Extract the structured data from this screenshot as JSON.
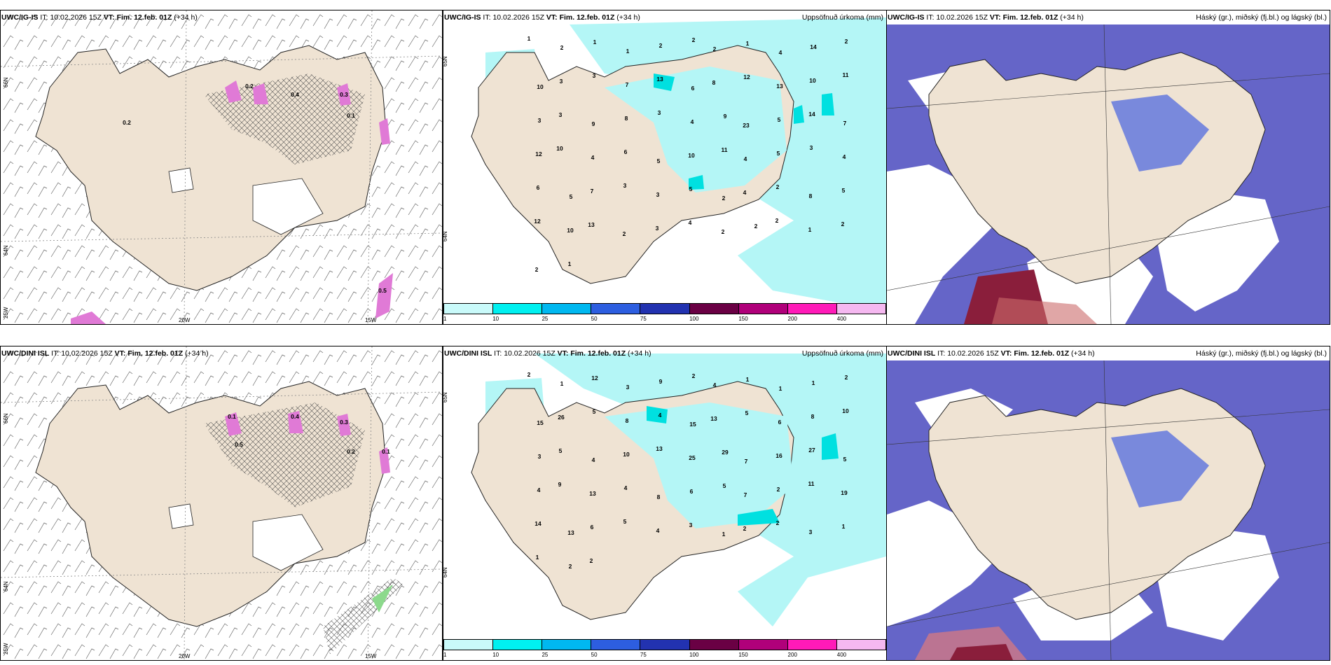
{
  "colors": {
    "land": "#efe3d3",
    "precip_light": "#b4f6f6",
    "cloud_high": "#6565c8",
    "cloud_mid": "#4763e0",
    "cloud_low": "#cfe8ff",
    "magenta": "#e07ad6",
    "darkred": "#8a1e3b"
  },
  "panels": [
    {
      "row": "top",
      "wind": {
        "model": "UWC/IG-IS",
        "it_label": "IT:",
        "it": "10.02.2026 15Z",
        "vt_label": "VT:",
        "vt": "Fim. 12.feb. 01Z",
        "lead": "(+34 h)",
        "lat1": "66N",
        "lat2": "64N",
        "lat3": "25W",
        "lon1": "20W",
        "lon2": "15W",
        "point_labels": [
          "0.2",
          "0.4",
          "0.3",
          "0.1",
          "0.5",
          "0.2"
        ]
      },
      "precip": {
        "model": "UWC/IG-IS",
        "it_label": "IT:",
        "it": "10.02.2026 15Z",
        "vt_label": "VT:",
        "vt": "Fim. 12.feb. 01Z",
        "lead": "(+34 h)",
        "right_title": "Uppsöfnuð úrkoma (mm)",
        "lat1": "65N",
        "lat2": "64N",
        "points": [
          "1",
          "2",
          "1",
          "1",
          "2",
          "2",
          "2",
          "1",
          "4",
          "14",
          "2",
          "10",
          "3",
          "3",
          "7",
          "13",
          "6",
          "8",
          "12",
          "13",
          "10",
          "11",
          "3",
          "3",
          "9",
          "8",
          "3",
          "4",
          "9",
          "23",
          "5",
          "14",
          "7",
          "12",
          "10",
          "4",
          "6",
          "5",
          "10",
          "11",
          "4",
          "5",
          "3",
          "4",
          "6",
          "5",
          "7",
          "3",
          "3",
          "5",
          "2",
          "4",
          "2",
          "8",
          "5",
          "12",
          "10",
          "13",
          "2",
          "3",
          "4",
          "2",
          "2",
          "2",
          "1",
          "2",
          "2",
          "1"
        ]
      },
      "cloud": {
        "model": "UWC/IG-IS",
        "it_label": "IT:",
        "it": "10.02.2026 15Z",
        "vt_label": "VT:",
        "vt": "Fim. 12.feb. 01Z",
        "lead": "(+34 h)",
        "right_title": "Háský (gr.), miðský (fj.bl.) og lágský (bl.)"
      }
    },
    {
      "row": "bottom",
      "wind": {
        "model": "UWC/DINI ISL",
        "it_label": "IT:",
        "it": "10.02.2026 15Z",
        "vt_label": "VT:",
        "vt": "Fim. 12.feb. 01Z",
        "lead": "(+34 h)",
        "lat1": "66N",
        "lat2": "64N",
        "lat3": "25W",
        "lon1": "20W",
        "lon2": "15W",
        "point_labels": [
          "0.4",
          "0.1",
          "0.3",
          "0.2",
          "0.1",
          "0.5"
        ]
      },
      "precip": {
        "model": "UWC/DINI ISL",
        "it_label": "IT:",
        "it": "10.02.2026 15Z",
        "vt_label": "VT:",
        "vt": "Fim. 12.feb. 01Z",
        "lead": "(+34 h)",
        "right_title": "Uppsöfnuð úrkoma (mm)",
        "lat1": "65N",
        "lat2": "64N",
        "points": [
          "2",
          "1",
          "12",
          "3",
          "9",
          "2",
          "4",
          "1",
          "1",
          "1",
          "2",
          "15",
          "26",
          "5",
          "8",
          "4",
          "15",
          "13",
          "5",
          "6",
          "8",
          "10",
          "3",
          "5",
          "4",
          "10",
          "13",
          "25",
          "29",
          "7",
          "16",
          "27",
          "5",
          "4",
          "9",
          "13",
          "4",
          "8",
          "6",
          "5",
          "7",
          "2",
          "11",
          "19",
          "14",
          "13",
          "6",
          "5",
          "4",
          "3",
          "1",
          "2",
          "2",
          "3",
          "1",
          "1",
          "2",
          "2"
        ]
      },
      "cloud": {
        "model": "UWC/DINI ISL",
        "it_label": "IT:",
        "it": "10.02.2026 15Z",
        "vt_label": "VT:",
        "vt": "Fim. 12.feb. 01Z",
        "lead": "(+34 h)",
        "right_title": "Háský (gr.), miðský (fj.bl.) og lágský (bl.)"
      }
    }
  ],
  "colorbar": {
    "labels": [
      "1",
      "10",
      "25",
      "50",
      "75",
      "100",
      "150",
      "200",
      "400"
    ],
    "colors": [
      "#c9fafa",
      "#00f0f0",
      "#00b8f0",
      "#2d5ee0",
      "#2232b0",
      "#6a0044",
      "#b0007a",
      "#ff1ab8",
      "#f5b8f0"
    ]
  }
}
